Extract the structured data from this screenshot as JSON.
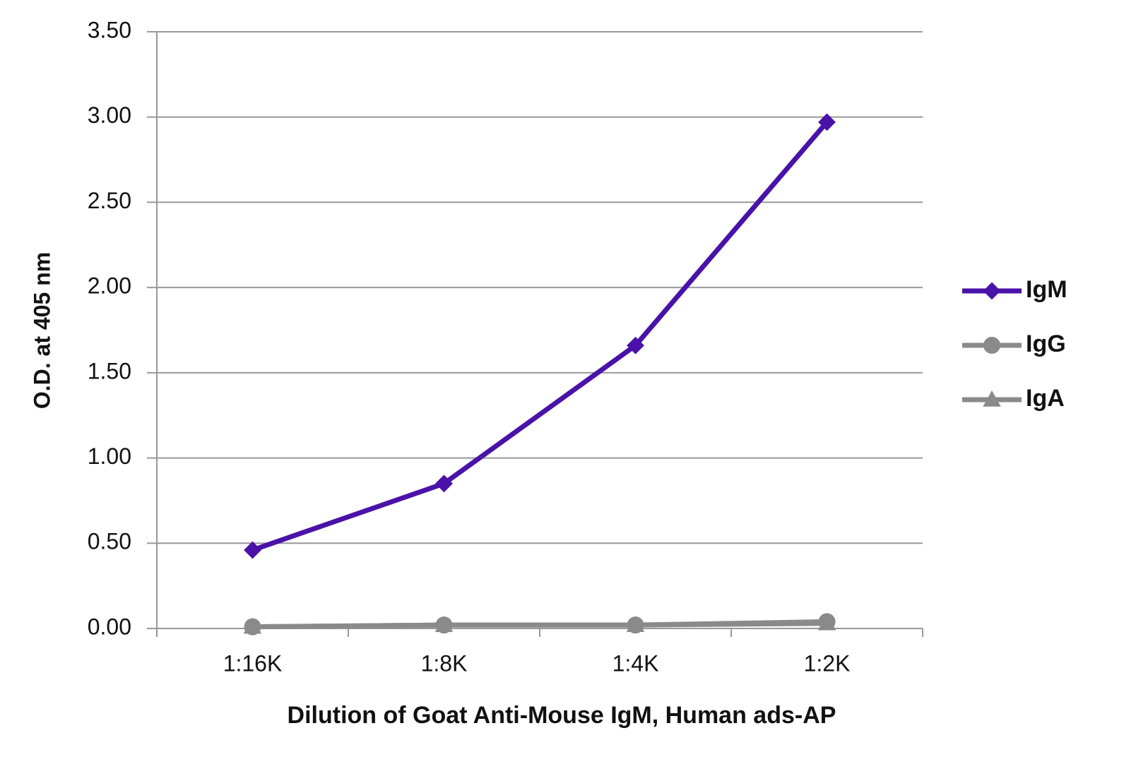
{
  "chart_data": {
    "type": "line",
    "x_label": "Dilution of Goat Anti-Mouse IgM, Human ads-AP",
    "y_label": "O.D. at 405 nm",
    "categories": [
      "1:16K",
      "1:8K",
      "1:4K",
      "1:2K"
    ],
    "series": [
      {
        "name": "IgM",
        "color": "#4a12a8",
        "marker": "diamond",
        "values": [
          0.46,
          0.85,
          1.66,
          2.97
        ]
      },
      {
        "name": "IgG",
        "color": "#8a8a8a",
        "marker": "circle",
        "values": [
          0.01,
          0.02,
          0.02,
          0.04
        ]
      },
      {
        "name": "IgA",
        "color": "#8a8a8a",
        "marker": "triangle",
        "values": [
          0.01,
          0.02,
          0.02,
          0.03
        ]
      }
    ],
    "ylim": [
      0,
      3.5
    ],
    "yticks": [
      {
        "value": 0,
        "label": "0.00"
      },
      {
        "value": 0.5,
        "label": "0.50"
      },
      {
        "value": 1,
        "label": "1.00"
      },
      {
        "value": 1.5,
        "label": "1.50"
      },
      {
        "value": 2,
        "label": "2.00"
      },
      {
        "value": 2.5,
        "label": "2.50"
      },
      {
        "value": 3,
        "label": "3.00"
      },
      {
        "value": 3.5,
        "label": "3.50"
      }
    ],
    "grid": true,
    "legend": "right"
  }
}
